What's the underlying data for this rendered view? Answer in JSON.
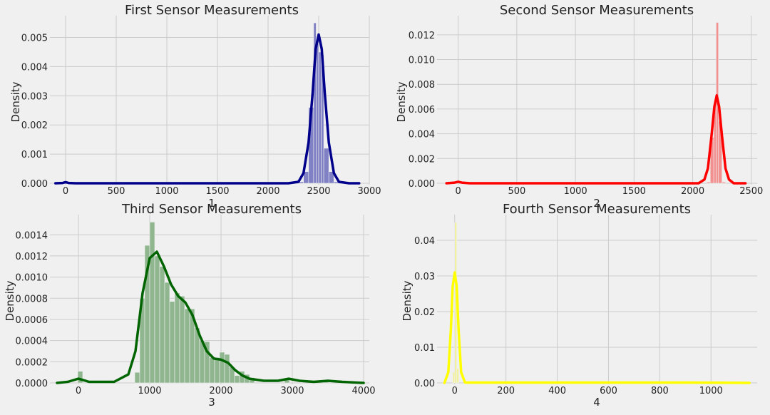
{
  "figure": {
    "background": "#f0f0f0"
  },
  "chart_data": [
    {
      "type": "histogram+kde",
      "title": "First Sensor Measurements",
      "xlabel": "1",
      "ylabel": "Density",
      "color": "#00008b",
      "bar_color": "#8080c5",
      "xlim": [
        -120,
        3000
      ],
      "ylim": [
        0,
        0.0056
      ],
      "xticks": [
        0,
        500,
        1000,
        1500,
        2000,
        2500,
        3000
      ],
      "yticks": [
        0.0,
        0.001,
        0.002,
        0.003,
        0.004,
        0.005
      ],
      "ytick_labels": [
        "0.000",
        "0.001",
        "0.002",
        "0.003",
        "0.004",
        "0.005"
      ],
      "grid": true,
      "bins": [
        {
          "x0": 2300,
          "x1": 2350,
          "y": 5e-05
        },
        {
          "x0": 2350,
          "x1": 2400,
          "y": 0.0004
        },
        {
          "x0": 2400,
          "x1": 2450,
          "y": 0.0026
        },
        {
          "x0": 2450,
          "x1": 2475,
          "y": 0.0055
        },
        {
          "x0": 2475,
          "x1": 2500,
          "y": 0.0048
        },
        {
          "x0": 2500,
          "x1": 2525,
          "y": 0.0045
        },
        {
          "x0": 2525,
          "x1": 2550,
          "y": 0.0044
        },
        {
          "x0": 2550,
          "x1": 2600,
          "y": 0.0012
        },
        {
          "x0": 2600,
          "x1": 2650,
          "y": 0.0004
        },
        {
          "x0": 2650,
          "x1": 2700,
          "y": 5e-05
        }
      ],
      "kde": [
        [
          -100,
          0
        ],
        [
          -30,
          1e-05
        ],
        [
          0,
          4e-05
        ],
        [
          30,
          1e-05
        ],
        [
          100,
          0
        ],
        [
          2200,
          0
        ],
        [
          2300,
          5e-05
        ],
        [
          2350,
          0.00035
        ],
        [
          2400,
          0.0014
        ],
        [
          2440,
          0.0031
        ],
        [
          2470,
          0.0046
        ],
        [
          2500,
          0.0051
        ],
        [
          2530,
          0.0046
        ],
        [
          2560,
          0.0031
        ],
        [
          2600,
          0.0014
        ],
        [
          2650,
          0.00035
        ],
        [
          2700,
          5e-05
        ],
        [
          2800,
          0
        ],
        [
          2900,
          0
        ]
      ]
    },
    {
      "type": "histogram+kde",
      "title": "Second Sensor Measurements",
      "xlabel": "2",
      "ylabel": "Density",
      "color": "#ff0000",
      "bar_color": "#f29090",
      "xlim": [
        -150,
        2550
      ],
      "ylim": [
        0,
        0.0132
      ],
      "xticks": [
        0,
        500,
        1000,
        1500,
        2000,
        2500
      ],
      "yticks": [
        0.0,
        0.002,
        0.004,
        0.006,
        0.008,
        0.01,
        0.012
      ],
      "ytick_labels": [
        "0.000",
        "0.002",
        "0.004",
        "0.006",
        "0.008",
        "0.010",
        "0.012"
      ],
      "grid": true,
      "bins": [
        {
          "x0": 2120,
          "x1": 2150,
          "y": 0.0001
        },
        {
          "x0": 2150,
          "x1": 2180,
          "y": 0.0037
        },
        {
          "x0": 2180,
          "x1": 2200,
          "y": 0.0065
        },
        {
          "x0": 2200,
          "x1": 2220,
          "y": 0.013
        },
        {
          "x0": 2220,
          "x1": 2250,
          "y": 0.005
        },
        {
          "x0": 2250,
          "x1": 2280,
          "y": 0.0001
        }
      ],
      "kde": [
        [
          -100,
          0
        ],
        [
          -30,
          5e-05
        ],
        [
          0,
          0.00012
        ],
        [
          30,
          5e-05
        ],
        [
          100,
          0
        ],
        [
          2050,
          0
        ],
        [
          2100,
          0.0003
        ],
        [
          2130,
          0.0012
        ],
        [
          2160,
          0.0038
        ],
        [
          2185,
          0.0062
        ],
        [
          2205,
          0.0071
        ],
        [
          2225,
          0.0062
        ],
        [
          2250,
          0.0038
        ],
        [
          2280,
          0.0012
        ],
        [
          2310,
          0.0003
        ],
        [
          2350,
          0
        ],
        [
          2450,
          0
        ]
      ]
    },
    {
      "type": "histogram+kde",
      "title": "Third Sensor Measurements",
      "xlabel": "3",
      "ylabel": "Density",
      "color": "#006400",
      "bar_color": "#8fb68f",
      "xlim": [
        -350,
        4080
      ],
      "ylim": [
        0,
        0.00155
      ],
      "xticks": [
        0,
        1000,
        2000,
        3000,
        4000
      ],
      "yticks": [
        0.0,
        0.0002,
        0.0004,
        0.0006,
        0.0008,
        0.001,
        0.0012,
        0.0014
      ],
      "ytick_labels": [
        "0.0000",
        "0.0002",
        "0.0004",
        "0.0006",
        "0.0008",
        "0.0010",
        "0.0012",
        "0.0014"
      ],
      "grid": true,
      "bins": [
        {
          "x0": -10,
          "x1": 60,
          "y": 0.00011
        },
        {
          "x0": 790,
          "x1": 860,
          "y": 0.0001
        },
        {
          "x0": 860,
          "x1": 930,
          "y": 0.0008
        },
        {
          "x0": 930,
          "x1": 1000,
          "y": 0.0013
        },
        {
          "x0": 1000,
          "x1": 1070,
          "y": 0.00152
        },
        {
          "x0": 1070,
          "x1": 1140,
          "y": 0.0012
        },
        {
          "x0": 1140,
          "x1": 1210,
          "y": 0.0011
        },
        {
          "x0": 1210,
          "x1": 1280,
          "y": 0.00095
        },
        {
          "x0": 1280,
          "x1": 1350,
          "y": 0.00077
        },
        {
          "x0": 1350,
          "x1": 1420,
          "y": 0.00085
        },
        {
          "x0": 1420,
          "x1": 1490,
          "y": 0.00082
        },
        {
          "x0": 1490,
          "x1": 1560,
          "y": 0.0007
        },
        {
          "x0": 1560,
          "x1": 1630,
          "y": 0.0007
        },
        {
          "x0": 1630,
          "x1": 1700,
          "y": 0.00052
        },
        {
          "x0": 1700,
          "x1": 1770,
          "y": 0.0004
        },
        {
          "x0": 1770,
          "x1": 1840,
          "y": 0.00039
        },
        {
          "x0": 1840,
          "x1": 1910,
          "y": 0.00024
        },
        {
          "x0": 1910,
          "x1": 1980,
          "y": 0.00024
        },
        {
          "x0": 1980,
          "x1": 2050,
          "y": 0.00029
        },
        {
          "x0": 2050,
          "x1": 2120,
          "y": 0.00027
        },
        {
          "x0": 2120,
          "x1": 2190,
          "y": 0.00015
        },
        {
          "x0": 2190,
          "x1": 2260,
          "y": 7e-05
        },
        {
          "x0": 2260,
          "x1": 2330,
          "y": 0.00011
        },
        {
          "x0": 2330,
          "x1": 2400,
          "y": 8e-05
        },
        {
          "x0": 2400,
          "x1": 2470,
          "y": 5e-05
        },
        {
          "x0": 2890,
          "x1": 2960,
          "y": 3e-05
        },
        {
          "x0": 3440,
          "x1": 3510,
          "y": 3e-05
        }
      ],
      "kde": [
        [
          -300,
          0
        ],
        [
          -150,
          1e-05
        ],
        [
          0,
          4e-05
        ],
        [
          150,
          1e-05
        ],
        [
          500,
          1e-05
        ],
        [
          700,
          8e-05
        ],
        [
          800,
          0.0003
        ],
        [
          900,
          0.00085
        ],
        [
          1000,
          0.00118
        ],
        [
          1100,
          0.00124
        ],
        [
          1200,
          0.0011
        ],
        [
          1300,
          0.00093
        ],
        [
          1400,
          0.00082
        ],
        [
          1500,
          0.00076
        ],
        [
          1600,
          0.00064
        ],
        [
          1700,
          0.00045
        ],
        [
          1800,
          0.0003
        ],
        [
          1900,
          0.00023
        ],
        [
          2000,
          0.00022
        ],
        [
          2100,
          0.00019
        ],
        [
          2200,
          0.00012
        ],
        [
          2300,
          7e-05
        ],
        [
          2400,
          4e-05
        ],
        [
          2600,
          2e-05
        ],
        [
          2800,
          2e-05
        ],
        [
          2950,
          4e-05
        ],
        [
          3100,
          2e-05
        ],
        [
          3300,
          1e-05
        ],
        [
          3500,
          2e-05
        ],
        [
          3700,
          1e-05
        ],
        [
          4000,
          0
        ]
      ]
    },
    {
      "type": "histogram+kde",
      "title": "Fourth Sensor Measurements",
      "xlabel": "4",
      "ylabel": "Density",
      "color": "#ffff00",
      "bar_color": "#f1f1a0",
      "xlim": [
        -55,
        1180
      ],
      "ylim": [
        0,
        0.046
      ],
      "xticks": [
        0,
        200,
        400,
        600,
        800,
        1000
      ],
      "yticks": [
        0.0,
        0.01,
        0.02,
        0.03,
        0.04
      ],
      "ytick_labels": [
        "0.00",
        "0.01",
        "0.02",
        "0.03",
        "0.04"
      ],
      "grid": true,
      "bins": [
        {
          "x0": -8,
          "x1": 0,
          "y": 0.003
        },
        {
          "x0": 0,
          "x1": 8,
          "y": 0.045
        },
        {
          "x0": 8,
          "x1": 16,
          "y": 0.004
        }
      ],
      "kde": [
        [
          -40,
          0
        ],
        [
          -25,
          0.003
        ],
        [
          -15,
          0.015
        ],
        [
          -8,
          0.027
        ],
        [
          0,
          0.031
        ],
        [
          8,
          0.027
        ],
        [
          15,
          0.015
        ],
        [
          25,
          0.003
        ],
        [
          40,
          0.0001
        ],
        [
          100,
          0.0001
        ],
        [
          300,
          0.0001
        ],
        [
          600,
          0.0001
        ],
        [
          900,
          0.0001
        ],
        [
          1150,
          0
        ]
      ]
    }
  ]
}
